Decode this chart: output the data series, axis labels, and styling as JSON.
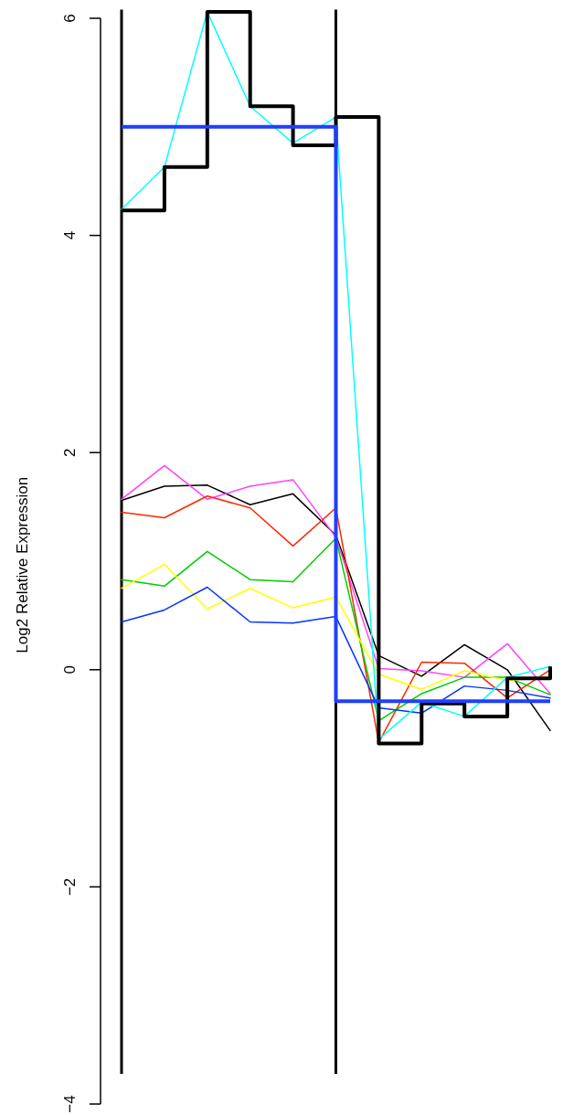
{
  "chart_data": {
    "type": "line",
    "ylabel": "Log2 Relative Expression",
    "categories": [
      null,
      null,
      null,
      null,
      null,
      null,
      null,
      null,
      null,
      null,
      null
    ],
    "ylim": [
      -4,
      6.08
    ],
    "yticks": [
      -4,
      -2,
      0,
      2,
      4,
      6
    ],
    "tick_labels": "y",
    "grid": false,
    "series": [
      {
        "color": "#000000",
        "values": [
          1.56,
          1.69,
          1.7,
          1.52,
          1.62,
          1.24,
          0.13,
          -0.06,
          0.23,
          0.0,
          -0.56
        ]
      },
      {
        "color": "#ff40ff",
        "values": [
          1.57,
          1.88,
          1.57,
          1.69,
          1.75,
          1.22,
          0.01,
          -0.01,
          -0.07,
          0.24,
          -0.22
        ]
      },
      {
        "color": "#ff2600",
        "values": [
          1.45,
          1.4,
          1.6,
          1.49,
          1.14,
          1.49,
          -0.67,
          0.07,
          0.06,
          -0.26,
          0.0
        ]
      },
      {
        "color": "#00cc00",
        "values": [
          0.83,
          0.77,
          1.09,
          0.83,
          0.81,
          1.21,
          -0.47,
          -0.22,
          -0.07,
          -0.07,
          -0.23
        ]
      },
      {
        "color": "#ffff00",
        "values": [
          0.75,
          0.97,
          0.56,
          0.75,
          0.57,
          0.67,
          -0.04,
          -0.18,
          -0.01,
          -0.1,
          -0.06
        ]
      },
      {
        "color": "#0433ff",
        "values": [
          0.44,
          0.55,
          0.76,
          0.44,
          0.43,
          0.49,
          -0.35,
          -0.4,
          -0.15,
          -0.19,
          -0.26
        ]
      },
      {
        "color": "#00ffff",
        "values": [
          4.24,
          4.63,
          6.06,
          5.19,
          4.85,
          5.09,
          -0.64,
          -0.3,
          -0.43,
          -0.07,
          0.03
        ]
      },
      {
        "type": "step",
        "color": "#000000",
        "values": [
          4.23,
          4.63,
          6.06,
          5.19,
          4.83,
          5.09,
          -0.68,
          -0.31,
          -0.43,
          -0.08,
          0.03
        ]
      },
      {
        "type": "step",
        "color": "#1f3fff",
        "values": [
          5.0,
          5.0,
          5.0,
          5.0,
          5.0,
          -0.29,
          -0.29,
          -0.29,
          -0.29,
          -0.29,
          -0.29
        ]
      }
    ]
  }
}
